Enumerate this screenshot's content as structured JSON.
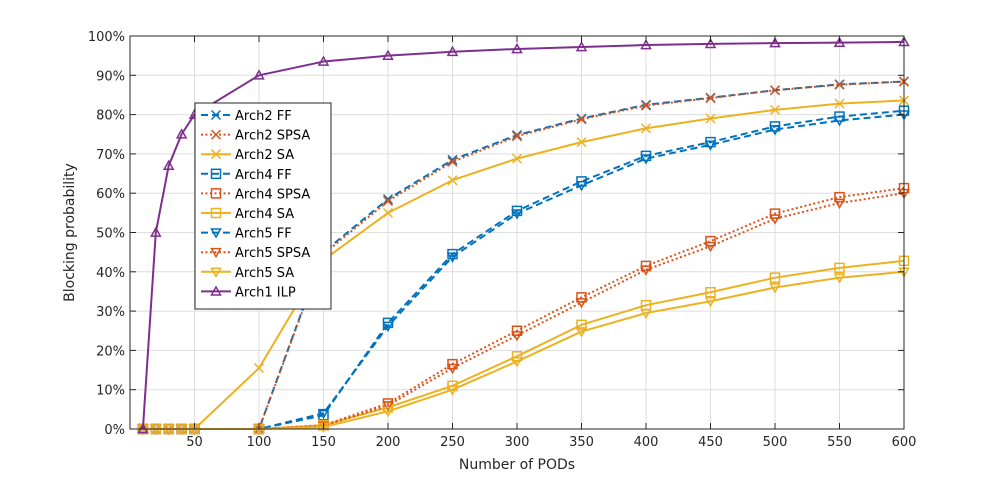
{
  "chart_data": {
    "type": "line",
    "title": "",
    "xlabel": "Number of PODs",
    "ylabel": "Blocking probability",
    "xlim": [
      0,
      600
    ],
    "ylim": [
      0,
      1
    ],
    "grid": true,
    "legend_position": "upper-left inside",
    "x_ticks": [
      50,
      100,
      150,
      200,
      250,
      300,
      350,
      400,
      450,
      500,
      550,
      600
    ],
    "x_tick_labels": [
      "50",
      "100",
      "150",
      "200",
      "250",
      "300",
      "350",
      "400",
      "450",
      "500",
      "550",
      "600"
    ],
    "y_ticks": [
      0,
      0.1,
      0.2,
      0.3,
      0.4,
      0.5,
      0.6,
      0.7,
      0.8,
      0.9,
      1.0
    ],
    "y_tick_labels": [
      "0%",
      "10%",
      "20%",
      "30%",
      "40%",
      "50%",
      "60%",
      "70%",
      "80%",
      "90%",
      "100%"
    ],
    "series": [
      {
        "name": "Arch2 FF",
        "color": "#0072BD",
        "dash": "dashed",
        "marker": "x",
        "x": [
          10,
          20,
          30,
          40,
          50,
          100,
          150,
          200,
          250,
          300,
          350,
          400,
          450,
          500,
          550,
          600
        ],
        "y": [
          0,
          0,
          0,
          0,
          0,
          0,
          0.45,
          0.585,
          0.685,
          0.748,
          0.79,
          0.825,
          0.843,
          0.862,
          0.877,
          0.884
        ]
      },
      {
        "name": "Arch2 SPSA",
        "color": "#D95319",
        "dash": "dotted",
        "marker": "x",
        "x": [
          10,
          20,
          30,
          40,
          50,
          100,
          150,
          200,
          250,
          300,
          350,
          400,
          450,
          500,
          550,
          600
        ],
        "y": [
          0,
          0,
          0,
          0,
          0,
          0,
          0.445,
          0.58,
          0.68,
          0.745,
          0.788,
          0.823,
          0.842,
          0.862,
          0.876,
          0.884
        ]
      },
      {
        "name": "Arch2 SA",
        "color": "#EDB120",
        "dash": "solid",
        "marker": "x",
        "x": [
          10,
          20,
          30,
          40,
          50,
          100,
          150,
          200,
          250,
          300,
          350,
          400,
          450,
          500,
          550,
          600
        ],
        "y": [
          0,
          0,
          0,
          0,
          0,
          0.155,
          0.43,
          0.55,
          0.633,
          0.688,
          0.73,
          0.765,
          0.79,
          0.812,
          0.828,
          0.836
        ]
      },
      {
        "name": "Arch4 FF",
        "color": "#0072BD",
        "dash": "dashed",
        "marker": "square",
        "x": [
          10,
          20,
          30,
          40,
          50,
          100,
          150,
          200,
          250,
          300,
          350,
          400,
          450,
          500,
          550,
          600
        ],
        "y": [
          0,
          0,
          0,
          0,
          0,
          0,
          0.035,
          0.27,
          0.445,
          0.555,
          0.63,
          0.695,
          0.73,
          0.77,
          0.795,
          0.81
        ]
      },
      {
        "name": "Arch4 SPSA",
        "color": "#D95319",
        "dash": "dotted",
        "marker": "square",
        "x": [
          10,
          20,
          30,
          40,
          50,
          100,
          150,
          200,
          250,
          300,
          350,
          400,
          450,
          500,
          550,
          600
        ],
        "y": [
          0,
          0,
          0,
          0,
          0,
          0,
          0.01,
          0.065,
          0.165,
          0.25,
          0.335,
          0.415,
          0.478,
          0.548,
          0.59,
          0.613
        ]
      },
      {
        "name": "Arch4 SA",
        "color": "#EDB120",
        "dash": "solid",
        "marker": "square",
        "x": [
          10,
          20,
          30,
          40,
          50,
          100,
          150,
          200,
          250,
          300,
          350,
          400,
          450,
          500,
          550,
          600
        ],
        "y": [
          0,
          0,
          0,
          0,
          0,
          0,
          0.01,
          0.055,
          0.11,
          0.185,
          0.265,
          0.315,
          0.348,
          0.385,
          0.41,
          0.428
        ]
      },
      {
        "name": "Arch5 FF",
        "color": "#0072BD",
        "dash": "dashed",
        "marker": "triangle-down",
        "x": [
          10,
          20,
          30,
          40,
          50,
          100,
          150,
          200,
          250,
          300,
          350,
          400,
          450,
          500,
          550,
          600
        ],
        "y": [
          0,
          0,
          0,
          0,
          0,
          0,
          0.04,
          0.262,
          0.438,
          0.548,
          0.62,
          0.688,
          0.723,
          0.762,
          0.785,
          0.8
        ]
      },
      {
        "name": "Arch5 SPSA",
        "color": "#D95319",
        "dash": "dotted",
        "marker": "triangle-down",
        "x": [
          10,
          20,
          30,
          40,
          50,
          100,
          150,
          200,
          250,
          300,
          350,
          400,
          450,
          500,
          550,
          600
        ],
        "y": [
          0,
          0,
          0,
          0,
          0,
          0,
          0.008,
          0.06,
          0.155,
          0.238,
          0.322,
          0.405,
          0.465,
          0.535,
          0.575,
          0.6
        ]
      },
      {
        "name": "Arch5 SA",
        "color": "#EDB120",
        "dash": "solid",
        "marker": "triangle-down",
        "x": [
          10,
          20,
          30,
          40,
          50,
          100,
          150,
          200,
          250,
          300,
          350,
          400,
          450,
          500,
          550,
          600
        ],
        "y": [
          0,
          0,
          0,
          0,
          0,
          0,
          0.005,
          0.045,
          0.1,
          0.172,
          0.248,
          0.295,
          0.325,
          0.36,
          0.385,
          0.4
        ]
      },
      {
        "name": "Arch1 ILP",
        "color": "#7E2F8E",
        "dash": "solid",
        "marker": "triangle-up",
        "x": [
          10,
          20,
          30,
          40,
          50,
          100,
          150,
          200,
          250,
          300,
          350,
          400,
          450,
          500,
          550,
          600
        ],
        "y": [
          0,
          0.5,
          0.67,
          0.75,
          0.8,
          0.9,
          0.935,
          0.95,
          0.96,
          0.967,
          0.972,
          0.977,
          0.98,
          0.982,
          0.983,
          0.985
        ]
      }
    ]
  }
}
